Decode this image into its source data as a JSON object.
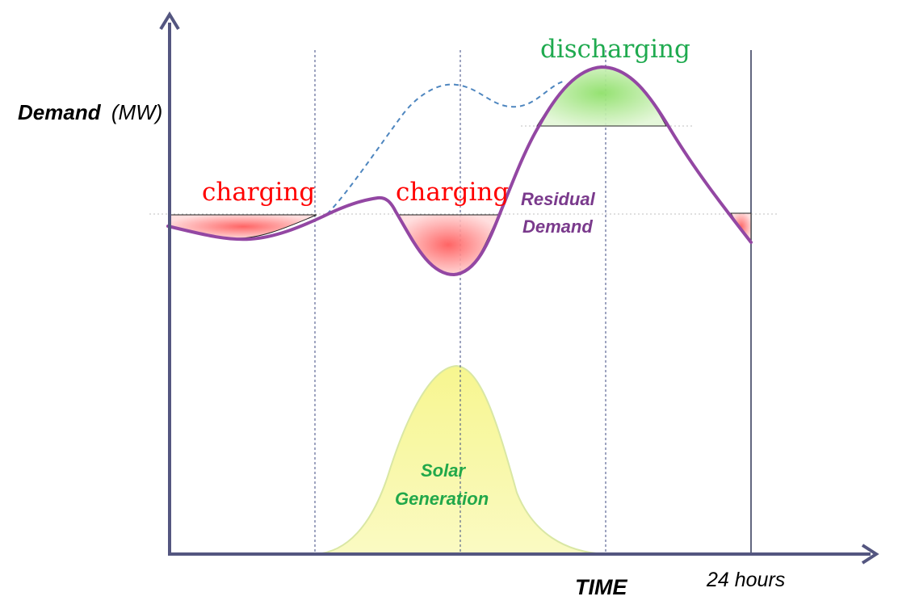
{
  "axes": {
    "y_label_bold": "Demand",
    "y_label_unit": "(MW)",
    "x_label": "TIME",
    "x_end_label": "24 hours"
  },
  "annotations": {
    "charging_left": "charging",
    "charging_mid": "charging",
    "discharging": "discharging",
    "residual_line1": "Residual",
    "residual_line2": "Demand",
    "solar_line1": "Solar",
    "solar_line2": "Generation"
  },
  "colors": {
    "axis": "#545680",
    "residual": "#9347a3",
    "demand_dashed": "#4e86bf",
    "charging_text": "#ff0000",
    "discharging_text": "#1faa4f",
    "residual_text": "#7a3a8c",
    "solar_text": "#21a84a",
    "solar_fill": "#f6f59c",
    "charge_fill": "#ff6666",
    "discharge_fill": "#9ee07f"
  }
}
